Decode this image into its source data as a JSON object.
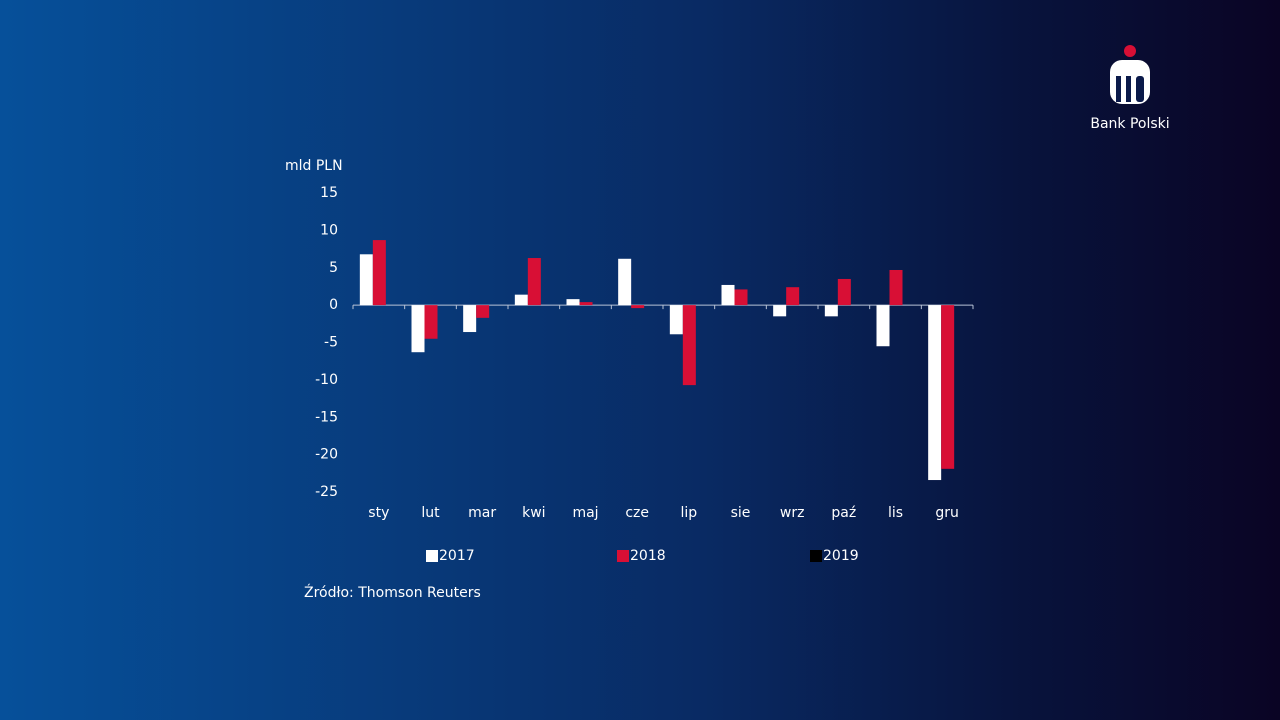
{
  "brand": "Bank Polski",
  "source": "Źródło: Thomson Reuters",
  "chart_data": {
    "type": "bar",
    "y_label": "mld PLN",
    "categories": [
      "sty",
      "lut",
      "mar",
      "kwi",
      "maj",
      "cze",
      "lip",
      "sie",
      "wrz",
      "paź",
      "lis",
      "gru"
    ],
    "series": [
      {
        "name": "2017",
        "color": "#ffffff",
        "values": [
          6.8,
          -6.3,
          -3.6,
          1.4,
          0.8,
          6.2,
          -3.9,
          2.7,
          -1.5,
          -1.5,
          -5.5,
          -23.4
        ]
      },
      {
        "name": "2018",
        "color": "#d80f35",
        "values": [
          8.7,
          -4.5,
          -1.7,
          6.3,
          0.4,
          -0.4,
          -10.7,
          2.1,
          2.4,
          3.5,
          4.7,
          -21.9
        ]
      },
      {
        "name": "2019",
        "color": "#000000",
        "values": [
          null,
          null,
          null,
          null,
          null,
          null,
          null,
          null,
          null,
          null,
          null,
          null
        ]
      }
    ],
    "ylim": [
      -25,
      15
    ],
    "yticks": [
      15,
      10,
      5,
      0,
      -5,
      -10,
      -15,
      -20,
      -25
    ]
  }
}
